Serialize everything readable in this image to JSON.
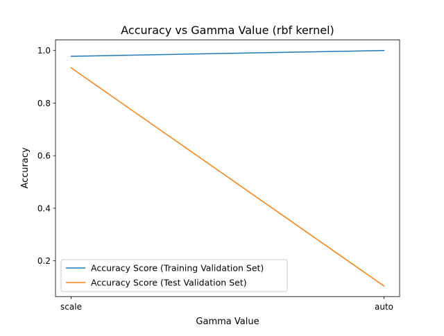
{
  "chart_data": {
    "type": "line",
    "title": "Accuracy vs Gamma Value (rbf kernel)",
    "xlabel": "Gamma Value",
    "ylabel": "Accuracy",
    "categories": [
      "scale",
      "auto"
    ],
    "yticks": [
      "0.2",
      "0.4",
      "0.6",
      "0.8",
      "1.0"
    ],
    "ylim": [
      0.064,
      1.04
    ],
    "grid": false,
    "legend_position": "lower-left",
    "series": [
      {
        "name": "Accuracy Score (Training Validation Set)",
        "values": [
          0.978,
          1.0
        ],
        "color": "#1f77b4"
      },
      {
        "name": "Accuracy Score (Test Validation Set)",
        "values": [
          0.934,
          0.104
        ],
        "color": "#ff7f0e"
      }
    ]
  }
}
